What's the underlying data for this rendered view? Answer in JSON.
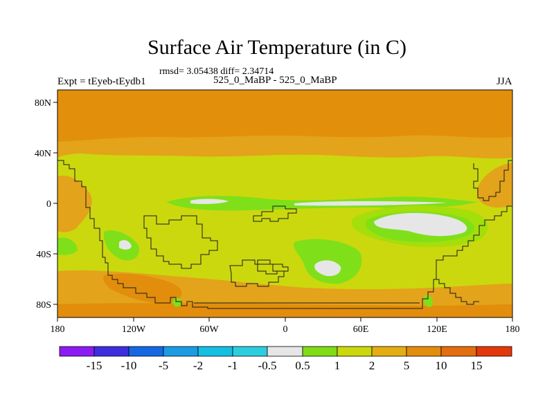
{
  "map": {
    "title": "Surface Air Temperature (in C)",
    "stats": "rmsd= 3.05438 diff= 2.34714",
    "left_label": "Expt = tEyeb-tEydb1",
    "center_label": "525_0_MaBP - 525_0_MaBP",
    "right_label": "JJA",
    "lon_ticks": [
      "180",
      "120W",
      "60W",
      "0",
      "60E",
      "120E",
      "180"
    ],
    "lat_ticks": [
      "80N",
      "40N",
      "0",
      "40S",
      "80S"
    ],
    "lat_range": [
      -90,
      90
    ],
    "lon_range": [
      -180,
      180
    ],
    "colors": {
      "band_warm_north": "#e2900b",
      "band_warm_south": "#e4950d",
      "orange": "#e3a31a",
      "yellow_green": "#cbd80e",
      "light_green": "#a4de0b",
      "green": "#7fe019",
      "white": "#e6e6e6",
      "coast": "#1a1a1a"
    }
  },
  "colorbar": {
    "labels": [
      "-15",
      "-10",
      "-5",
      "-2",
      "-1",
      "-0.5",
      "0.5",
      "1",
      "2",
      "5",
      "10",
      "15"
    ],
    "colors": [
      "#8a1bf2",
      "#3d2ee0",
      "#1568e2",
      "#1b9be3",
      "#14bfe2",
      "#2dcde0",
      "#e6e6e6",
      "#7fdc17",
      "#cbd80e",
      "#e3ae12",
      "#e28d0c",
      "#e26e0f",
      "#e3380c"
    ]
  }
}
